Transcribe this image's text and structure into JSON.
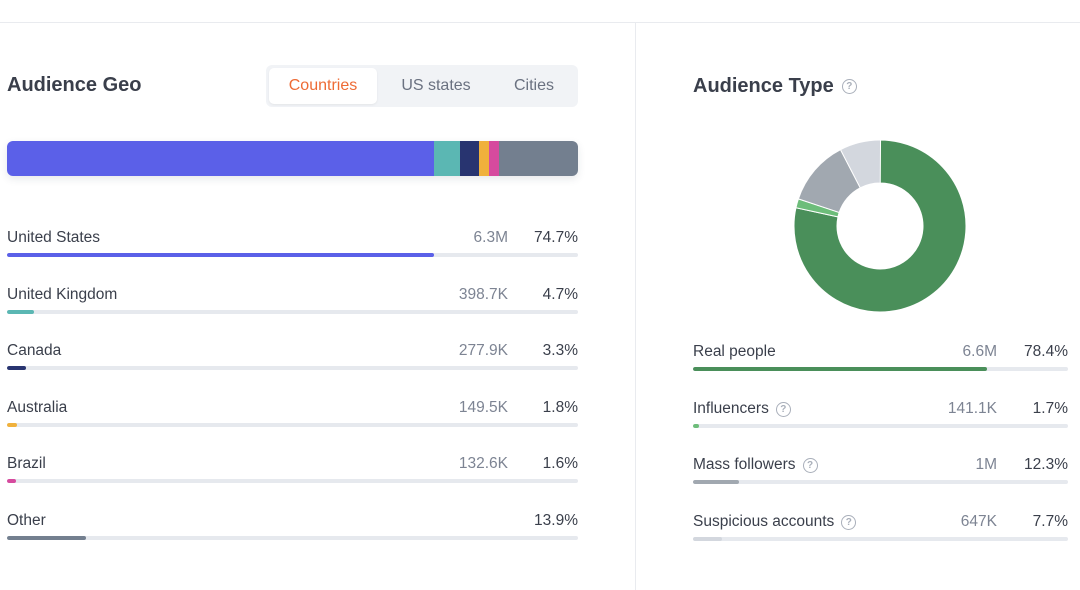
{
  "geo": {
    "title": "Audience Geo",
    "tabs": [
      {
        "label": "Countries",
        "active": true
      },
      {
        "label": "US states",
        "active": false
      },
      {
        "label": "Cities",
        "active": false
      }
    ],
    "rows": [
      {
        "name": "United States",
        "value": "6.3M",
        "percent": "74.7%",
        "fraction": 0.747,
        "color": "#5b60e8"
      },
      {
        "name": "United Kingdom",
        "value": "398.7K",
        "percent": "4.7%",
        "fraction": 0.047,
        "color": "#5bb7b3"
      },
      {
        "name": "Canada",
        "value": "277.9K",
        "percent": "3.3%",
        "fraction": 0.033,
        "color": "#283470"
      },
      {
        "name": "Australia",
        "value": "149.5K",
        "percent": "1.8%",
        "fraction": 0.018,
        "color": "#f0b13c"
      },
      {
        "name": "Brazil",
        "value": "132.6K",
        "percent": "1.6%",
        "fraction": 0.016,
        "color": "#d64a9e"
      },
      {
        "name": "Other",
        "value": "",
        "percent": "13.9%",
        "fraction": 0.139,
        "color": "#737f8f"
      }
    ]
  },
  "type": {
    "title": "Audience Type",
    "rows": [
      {
        "name": "Real people",
        "value": "6.6M",
        "percent": "78.4%",
        "fraction": 0.784,
        "color": "#4a8f5a",
        "help": false
      },
      {
        "name": "Influencers",
        "value": "141.1K",
        "percent": "1.7%",
        "fraction": 0.017,
        "color": "#6dbd7a",
        "help": true
      },
      {
        "name": "Mass followers",
        "value": "1M",
        "percent": "12.3%",
        "fraction": 0.123,
        "color": "#a1a8b0",
        "help": true
      },
      {
        "name": "Suspicious accounts",
        "value": "647K",
        "percent": "7.7%",
        "fraction": 0.077,
        "color": "#d3d7de",
        "help": true
      }
    ]
  }
}
